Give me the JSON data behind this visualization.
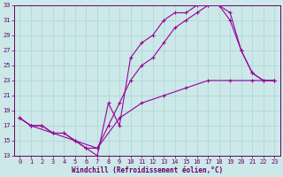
{
  "xlabel": "Windchill (Refroidissement éolien,°C)",
  "bg_color": "#cce8e8",
  "grid_color": "#b0d8d8",
  "line_color": "#990099",
  "marker": "+",
  "markersize": 3.5,
  "linewidth": 0.8,
  "xlim": [
    -0.5,
    23.5
  ],
  "ylim": [
    13,
    33
  ],
  "xticks": [
    0,
    1,
    2,
    3,
    4,
    5,
    6,
    7,
    8,
    9,
    10,
    11,
    12,
    13,
    14,
    15,
    16,
    17,
    18,
    19,
    20,
    21,
    22,
    23
  ],
  "yticks": [
    13,
    15,
    17,
    19,
    21,
    23,
    25,
    27,
    29,
    31,
    33
  ],
  "tick_fontsize": 5.0,
  "xlabel_fontsize": 5.5,
  "line1_x": [
    0,
    1,
    2,
    3,
    4,
    5,
    6,
    7,
    8,
    9,
    10,
    11,
    12,
    13,
    14,
    15,
    16,
    17,
    18,
    19,
    20,
    21,
    22,
    23
  ],
  "line1_y": [
    18,
    17,
    17,
    16,
    16,
    15,
    14,
    13,
    20,
    17,
    26,
    28,
    29,
    31,
    32,
    32,
    33,
    33,
    33,
    32,
    27,
    24,
    23,
    23
  ],
  "line2_x": [
    0,
    1,
    2,
    3,
    4,
    5,
    6,
    7,
    8,
    9,
    10,
    11,
    12,
    13,
    14,
    15,
    16,
    17,
    18,
    19,
    20,
    21,
    22,
    23
  ],
  "line2_y": [
    18,
    17,
    17,
    16,
    16,
    15,
    14,
    14,
    17,
    20,
    23,
    25,
    26,
    28,
    30,
    31,
    32,
    33,
    33,
    31,
    27,
    24,
    23,
    23
  ],
  "line3_x": [
    0,
    1,
    3,
    5,
    7,
    9,
    11,
    13,
    15,
    17,
    19,
    21,
    23
  ],
  "line3_y": [
    18,
    17,
    16,
    15,
    14,
    18,
    20,
    21,
    22,
    23,
    23,
    23,
    23
  ]
}
